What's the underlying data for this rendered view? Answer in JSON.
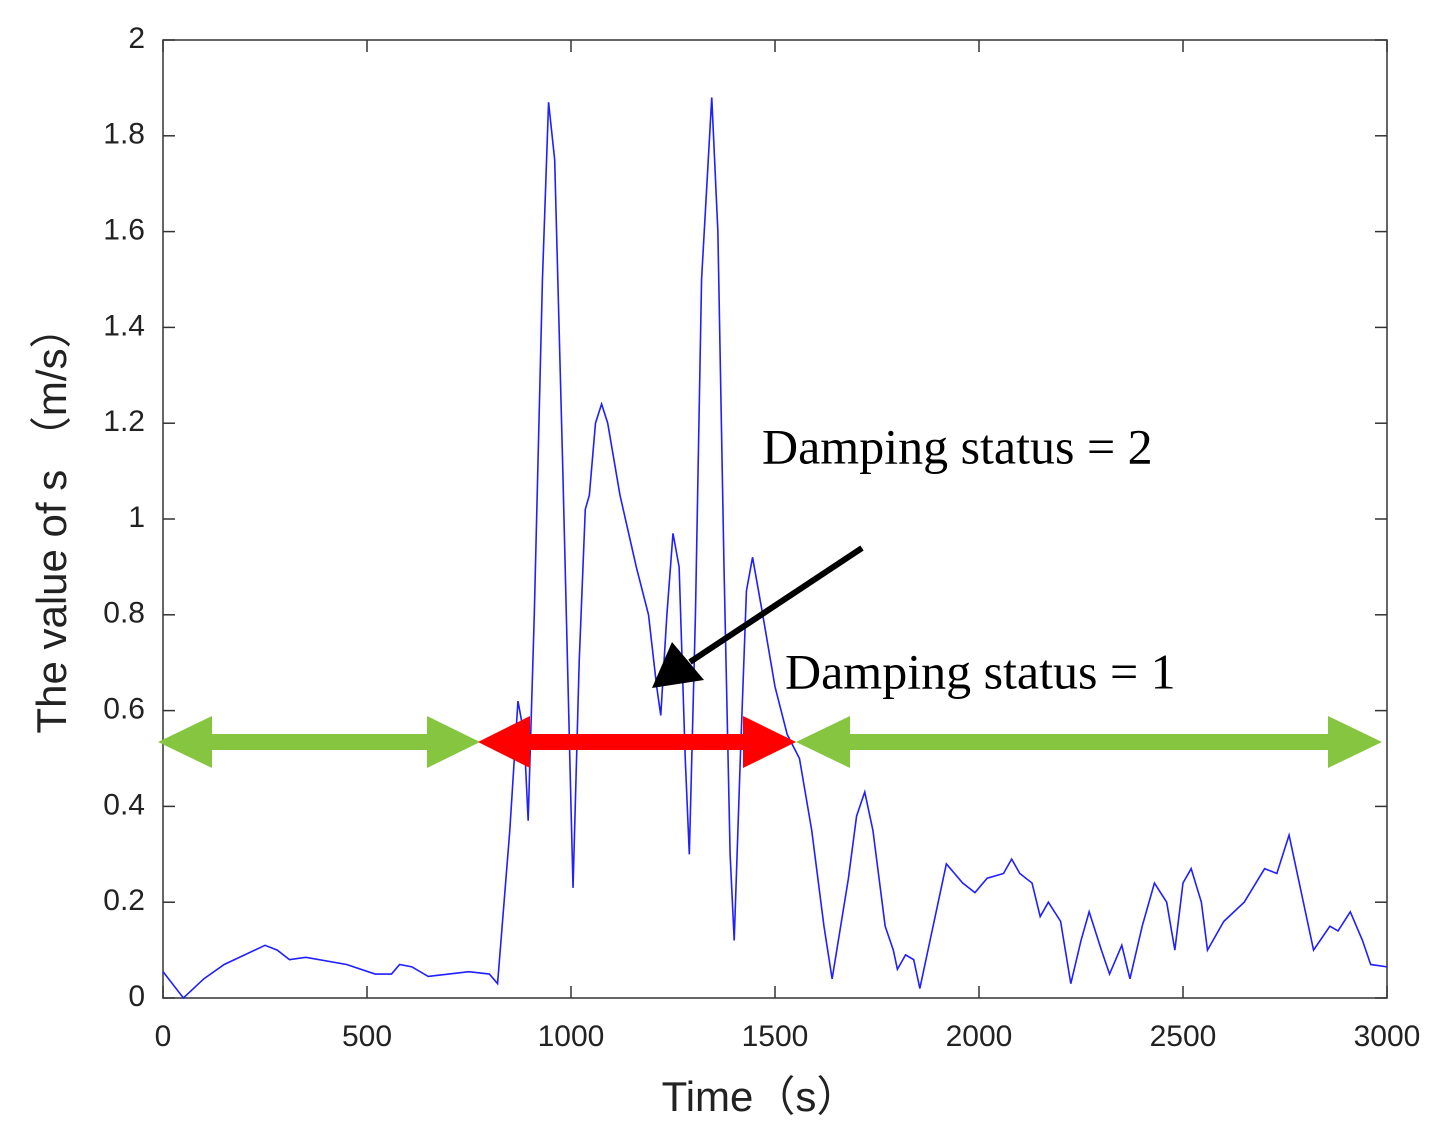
{
  "chart_data": {
    "type": "line",
    "xlabel": "Time（s）",
    "ylabel": "The value of s （m/s）",
    "annotations": [
      "Damping status = 2",
      "Damping status = 1"
    ],
    "color": "#1f1fff",
    "x": [
      0,
      50,
      100,
      150,
      250,
      280,
      310,
      350,
      450,
      520,
      560,
      580,
      610,
      650,
      700,
      750,
      800,
      820,
      850,
      870,
      885,
      895,
      910,
      930,
      945,
      960,
      980,
      1000,
      1005,
      1020,
      1035,
      1045,
      1060,
      1075,
      1090,
      1120,
      1160,
      1190,
      1210,
      1220,
      1235,
      1250,
      1265,
      1280,
      1290,
      1305,
      1320,
      1345,
      1360,
      1375,
      1390,
      1400,
      1415,
      1430,
      1445,
      1470,
      1500,
      1530,
      1560,
      1590,
      1620,
      1640,
      1680,
      1700,
      1720,
      1740,
      1770,
      1790,
      1800,
      1820,
      1840,
      1855,
      1880,
      1920,
      1960,
      1990,
      2020,
      2060,
      2080,
      2100,
      2130,
      2150,
      2170,
      2200,
      2225,
      2250,
      2270,
      2300,
      2320,
      2350,
      2370,
      2400,
      2430,
      2460,
      2480,
      2500,
      2520,
      2545,
      2560,
      2600,
      2650,
      2700,
      2730,
      2745,
      2760,
      2790,
      2820,
      2860,
      2880,
      2910,
      2940,
      2960,
      3000
    ],
    "values": [
      0.055,
      0.0,
      0.04,
      0.07,
      0.11,
      0.1,
      0.08,
      0.085,
      0.07,
      0.05,
      0.05,
      0.07,
      0.065,
      0.045,
      0.05,
      0.055,
      0.05,
      0.03,
      0.35,
      0.62,
      0.55,
      0.37,
      0.8,
      1.5,
      1.87,
      1.75,
      1.1,
      0.4,
      0.23,
      0.7,
      1.02,
      1.05,
      1.2,
      1.24,
      1.2,
      1.05,
      0.9,
      0.8,
      0.65,
      0.59,
      0.8,
      0.97,
      0.9,
      0.5,
      0.3,
      0.8,
      1.5,
      1.88,
      1.6,
      0.9,
      0.3,
      0.12,
      0.5,
      0.85,
      0.92,
      0.8,
      0.65,
      0.55,
      0.5,
      0.35,
      0.15,
      0.04,
      0.25,
      0.38,
      0.43,
      0.35,
      0.15,
      0.1,
      0.06,
      0.09,
      0.08,
      0.02,
      0.12,
      0.28,
      0.24,
      0.22,
      0.25,
      0.26,
      0.29,
      0.26,
      0.24,
      0.17,
      0.2,
      0.16,
      0.03,
      0.12,
      0.18,
      0.1,
      0.05,
      0.11,
      0.04,
      0.15,
      0.24,
      0.2,
      0.1,
      0.24,
      0.27,
      0.2,
      0.1,
      0.16,
      0.2,
      0.27,
      0.26,
      0.3,
      0.34,
      0.22,
      0.1,
      0.15,
      0.14,
      0.18,
      0.12,
      0.07,
      0.065
    ],
    "xlim": [
      0,
      3000
    ],
    "xticks": [
      0,
      500,
      1000,
      1500,
      2000,
      2500,
      3000
    ],
    "ylim": [
      0,
      2
    ],
    "yticks": [
      0,
      0.2,
      0.4,
      0.6,
      0.8,
      1,
      1.2,
      1.4,
      1.6,
      1.8,
      2
    ]
  }
}
